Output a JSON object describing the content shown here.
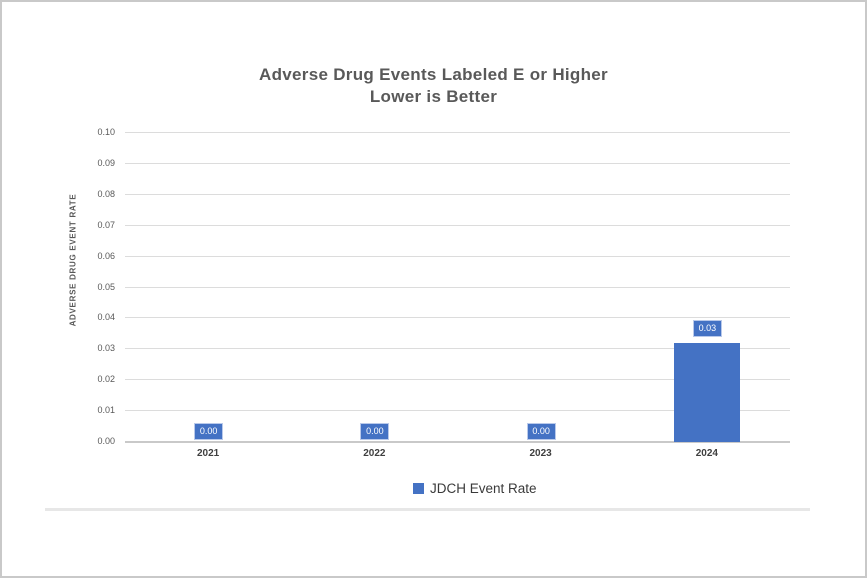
{
  "chart": {
    "title_line1": "Adverse Drug Events Labeled E or Higher",
    "title_line2": "Lower is Better",
    "y_axis_title": "ADVERSE DRUG EVENT RATE",
    "legend_label": "JDCH Event Rate"
  },
  "chart_data": {
    "type": "bar",
    "title": "Adverse Drug Events Labeled E or Higher",
    "subtitle": "Lower is Better",
    "categories": [
      "2021",
      "2022",
      "2023",
      "2024"
    ],
    "series": [
      {
        "name": "JDCH Event Rate",
        "values": [
          0,
          0,
          0,
          0.032
        ],
        "data_labels": [
          "0.00",
          "0.00",
          "0.00",
          "0.03"
        ]
      }
    ],
    "xlabel": "",
    "ylabel": "ADVERSE DRUG EVENT RATE",
    "ylim": [
      0,
      0.1
    ],
    "ytick_step": 0.01,
    "ytick_labels": [
      "0.00",
      "0.01",
      "0.02",
      "0.03",
      "0.04",
      "0.05",
      "0.06",
      "0.07",
      "0.08",
      "0.09",
      "0.10"
    ],
    "grid": true,
    "legend_position": "bottom",
    "colors": {
      "bar": "#4472C4",
      "grid": "#dcdcdc",
      "baseline": "#c9c9c9",
      "axis_text": "#595959",
      "title_text": "#595959",
      "category_text": "#3f3f3f",
      "label_box_border": "#b9c9ea",
      "label_text": "#ffffff",
      "legend_text": "#3a3a3a",
      "separator": "#e7e7e7",
      "frame_border": "#c9c9c9"
    }
  }
}
